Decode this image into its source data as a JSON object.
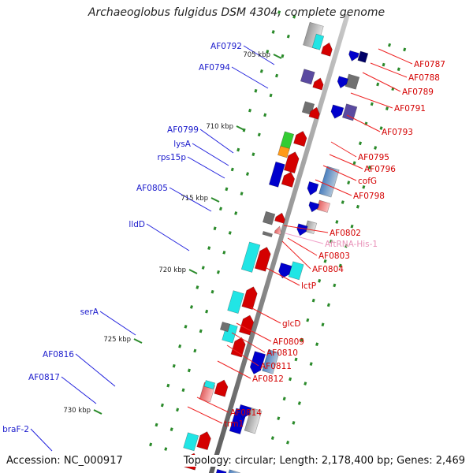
{
  "title": "Archaeoglobus fulgidus DSM 4304, complete genome",
  "footer": {
    "accession": "Accession: NC_000917",
    "topology": "Topology: circular; Length: 2,178,400 bp; Genes: 2,469"
  },
  "colors": {
    "forward_gene": "#d40000",
    "reverse_gene": "#0000cc",
    "forward_label": "#d40000",
    "reverse_label": "#1a1acc",
    "trna_label": "#e890b8",
    "backbone": "#8a8a8a",
    "tick": "#2a8a2a",
    "cyan": "#21e5e5",
    "purple": "#5a4aa0",
    "gray": "#707070"
  },
  "scale_labels": [
    "705 kbp",
    "710 kbp",
    "715 kbp",
    "720 kbp",
    "725 kbp",
    "730 kbp"
  ],
  "left_labels": [
    "AF0792",
    "AF0794",
    "AF0799",
    "lysA",
    "rps15p",
    "AF0805",
    "lldD",
    "serA",
    "AF0816",
    "AF0817",
    "braF-2"
  ],
  "right_labels": [
    "AF0787",
    "AF0788",
    "AF0789",
    "AF0791",
    "AF0793",
    "AF0795",
    "AF0796",
    "cofG",
    "AF0798",
    "AF0802",
    "AftRNA-His-1",
    "AF0803",
    "AF0804",
    "lctP",
    "glcD",
    "AF0809",
    "AF0810",
    "AF0811",
    "AF0812",
    "AF0814",
    "trm1"
  ]
}
